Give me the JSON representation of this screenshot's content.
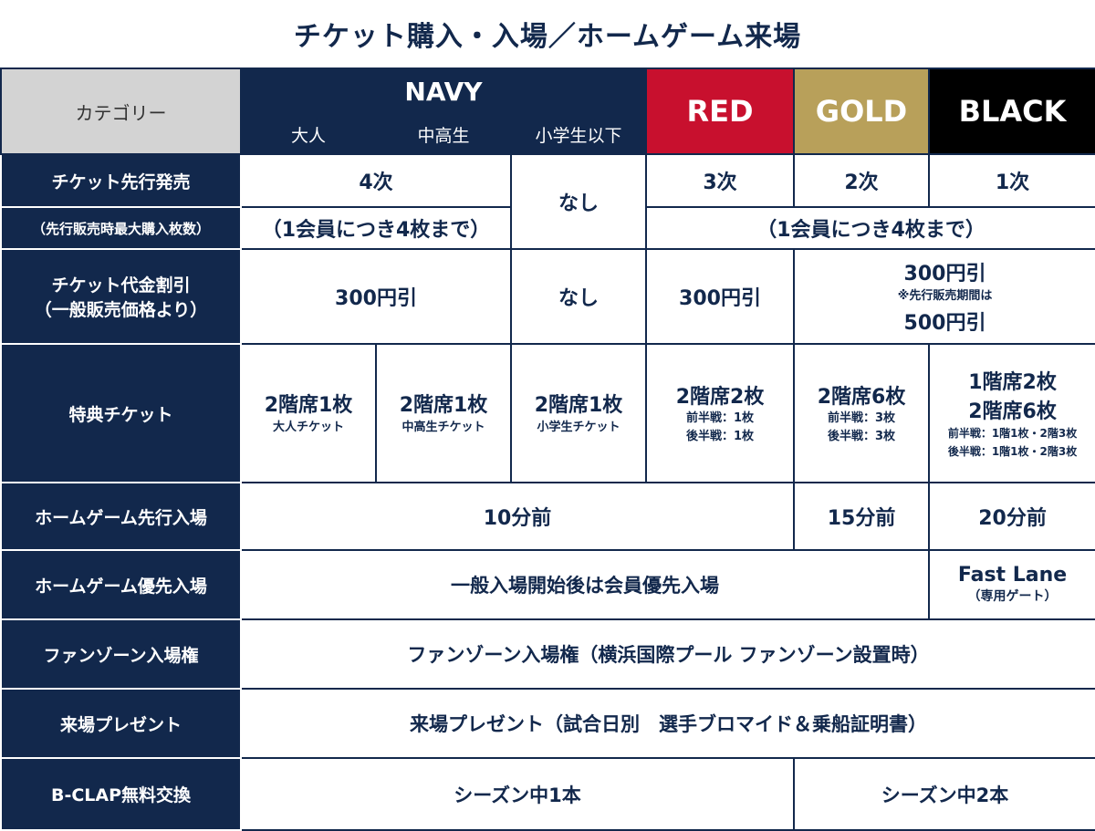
{
  "title": "チケット購入・入場／ホームゲーム来場",
  "header": {
    "category": "カテゴリー",
    "navy": "NAVY",
    "navy_sub": [
      "大人",
      "中高生",
      "小学生以下"
    ],
    "red": "RED",
    "gold": "GOLD",
    "black": "BLACK"
  },
  "colors": {
    "navy": "#12284c",
    "red": "#c8102e",
    "gold": "#b8a05a",
    "black": "#000000",
    "category_bg": "#d3d3d3"
  },
  "rows": {
    "presale": {
      "label": "チケット先行発売",
      "sub_label": "（先行販売時最大購入枚数）",
      "navy_adult_teen": "4次",
      "navy_child": "なし",
      "red": "3次",
      "gold": "2次",
      "black": "1次",
      "navy_limit": "（1会員につき4枚まで）",
      "rgb_limit": "（1会員につき4枚まで）"
    },
    "discount": {
      "label_line1": "チケット代金割引",
      "label_line2": "（一般販売価格より）",
      "navy_adult_teen": "300円引",
      "navy_child": "なし",
      "red": "300円引",
      "gold_black_main": "300円引",
      "gold_black_note": "※先行販売期間は",
      "gold_black_presale": "500円引"
    },
    "bonus": {
      "label": "特典チケット",
      "adult_main": "2階席1枚",
      "adult_sub": "大人チケット",
      "teen_main": "2階席1枚",
      "teen_sub": "中高生チケット",
      "child_main": "2階席1枚",
      "child_sub": "小学生チケット",
      "red_main": "2階席2枚",
      "red_sub1": "前半戦：1枚",
      "red_sub2": "後半戦：1枚",
      "gold_main": "2階席6枚",
      "gold_sub1": "前半戦：3枚",
      "gold_sub2": "後半戦：3枚",
      "black_main1": "1階席2枚",
      "black_main2": "2階席6枚",
      "black_sub1": "前半戦：1階1枚・2階3枚",
      "black_sub2": "後半戦：1階1枚・2階3枚"
    },
    "early_entry": {
      "label": "ホームゲーム先行入場",
      "navy_red": "10分前",
      "gold": "15分前",
      "black": "20分前"
    },
    "priority_entry": {
      "label": "ホームゲーム優先入場",
      "navy_gold": "一般入場開始後は会員優先入場",
      "black_main": "Fast Lane",
      "black_sub": "（専用ゲート）"
    },
    "fan_zone": {
      "label": "ファンゾーン入場権",
      "all": "ファンゾーン入場権（横浜国際プール ファンゾーン設置時）"
    },
    "present": {
      "label": "来場プレゼント",
      "all": "来場プレゼント（試合日別　選手ブロマイド＆乗船証明書）"
    },
    "bclap": {
      "label": "B-CLAP無料交換",
      "navy_red": "シーズン中1本",
      "gold_black": "シーズン中2本"
    }
  }
}
